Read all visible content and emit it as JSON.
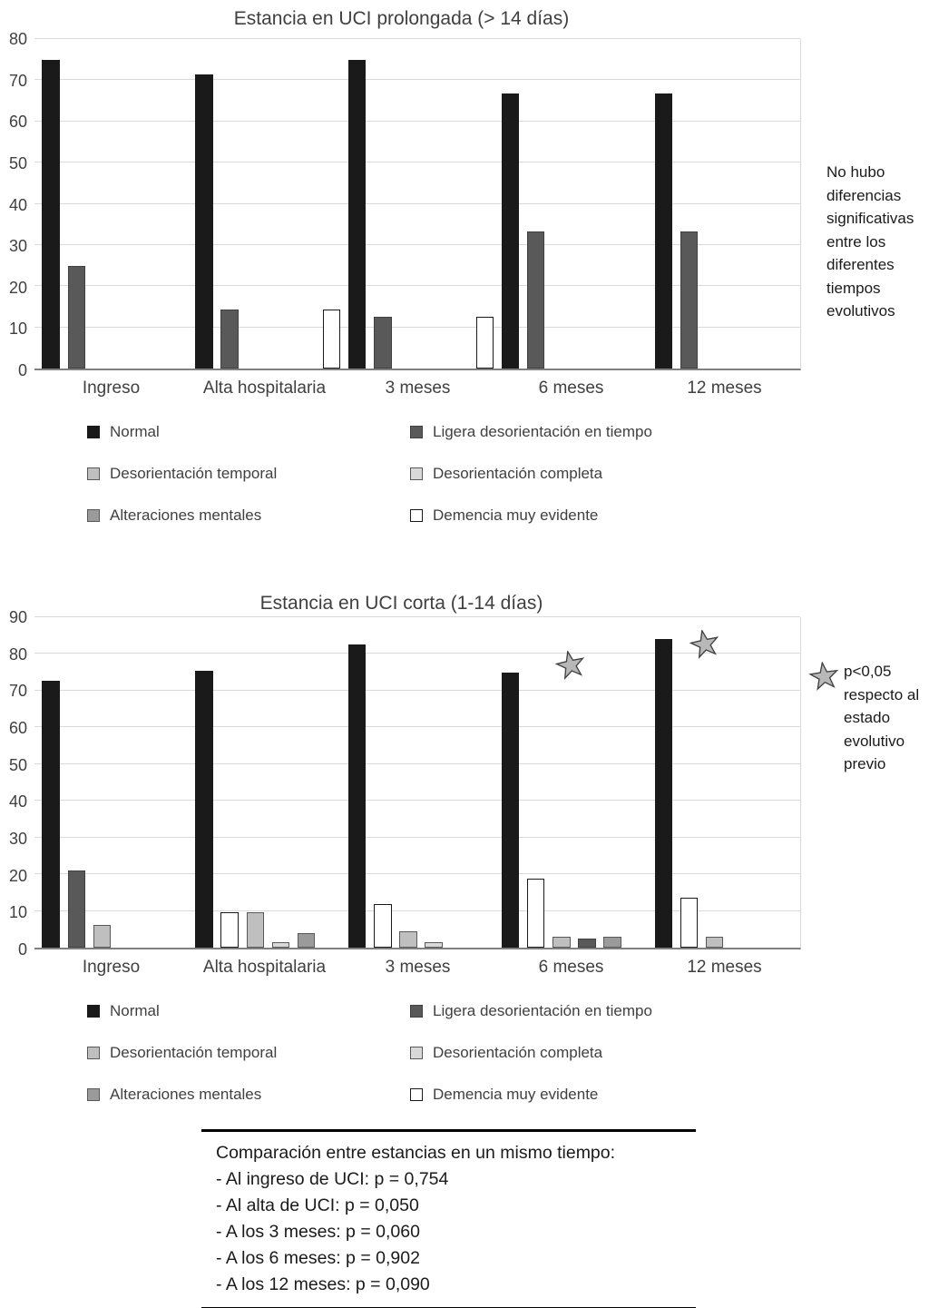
{
  "colors": {
    "normal": {
      "fill": "#1a1a1a",
      "border": "#1a1a1a"
    },
    "ligera": {
      "fill": "#595959",
      "border": "#404040"
    },
    "temporal": {
      "fill": "#bfbfbf",
      "border": "#595959"
    },
    "completa": {
      "fill": "#d9d9d9",
      "border": "#595959"
    },
    "alteraciones": {
      "fill": "#9a9a9a",
      "border": "#595959"
    },
    "demencia": {
      "fill": "#ffffff",
      "border": "#1a1a1a"
    },
    "star": {
      "fill": "#b8b8b8",
      "border": "#404040"
    }
  },
  "legend": {
    "items": [
      {
        "label": "Normal",
        "color": "normal"
      },
      {
        "label": "Ligera desorientación en tiempo",
        "color": "ligera"
      },
      {
        "label": "Desorientación temporal",
        "color": "temporal"
      },
      {
        "label": "Desorientación completa",
        "color": "completa"
      },
      {
        "label": "Alteraciones mentales",
        "color": "alteraciones"
      },
      {
        "label": "Demencia muy evidente",
        "color": "demencia"
      }
    ]
  },
  "chart_data": [
    {
      "type": "bar",
      "title": "Estancia en UCI prolongada (> 14 días)",
      "ylim": [
        0,
        80
      ],
      "ytick_step": 10,
      "grid": true,
      "legend_position": "bottom",
      "annotation": "No hubo diferencias significativas entre los diferentes tiempos evolutivos",
      "categories": [
        {
          "label": "Ingreso",
          "bars": [
            {
              "series": "Normal",
              "color": "normal",
              "value": 75
            },
            {
              "series": "Ligera desorientación en tiempo",
              "color": "ligera",
              "value": 25
            }
          ]
        },
        {
          "label": "Alta hospitalaria",
          "bars": [
            {
              "series": "Normal",
              "color": "normal",
              "value": 71.4
            },
            {
              "series": "Ligera desorientación en tiempo",
              "color": "ligera",
              "value": 14.3
            },
            {
              "series": "Demencia muy evidente",
              "color": "demencia",
              "value": 14.3,
              "slot": 5
            }
          ]
        },
        {
          "label": "3 meses",
          "bars": [
            {
              "series": "Normal",
              "color": "normal",
              "value": 75
            },
            {
              "series": "Ligera desorientación en tiempo",
              "color": "ligera",
              "value": 12.6
            },
            {
              "series": "Demencia muy evidente",
              "color": "demencia",
              "value": 12.6,
              "slot": 5
            }
          ]
        },
        {
          "label": "6 meses",
          "bars": [
            {
              "series": "Normal",
              "color": "normal",
              "value": 66.7
            },
            {
              "series": "Ligera desorientación en tiempo",
              "color": "ligera",
              "value": 33.3
            }
          ]
        },
        {
          "label": "12 meses",
          "bars": [
            {
              "series": "Normal",
              "color": "normal",
              "value": 66.7
            },
            {
              "series": "Ligera desorientación en tiempo",
              "color": "ligera",
              "value": 33.3
            }
          ]
        }
      ],
      "stars": []
    },
    {
      "type": "bar",
      "title": "Estancia en UCI corta (1-14 días)",
      "ylim": [
        0,
        90
      ],
      "ytick_step": 10,
      "grid": true,
      "legend_position": "bottom",
      "annotation": "p<0,05 respecto al estado evolutivo previo",
      "categories": [
        {
          "label": "Ingreso",
          "bars": [
            {
              "series": "Normal",
              "color": "normal",
              "value": 72.7
            },
            {
              "series": "Ligera desorientación en tiempo",
              "color": "ligera",
              "value": 21
            },
            {
              "series": "Desorientación temporal",
              "color": "temporal",
              "value": 6.3
            }
          ]
        },
        {
          "label": "Alta hospitalaria",
          "bars": [
            {
              "series": "Normal",
              "color": "normal",
              "value": 75.5
            },
            {
              "series": "Demencia muy evidente",
              "color": "demencia",
              "value": 9.7
            },
            {
              "series": "Desorientación temporal",
              "color": "temporal",
              "value": 9.7
            },
            {
              "series": "Desorientación completa",
              "color": "completa",
              "value": 1.5
            },
            {
              "series": "Alteraciones mentales",
              "color": "alteraciones",
              "value": 4
            }
          ]
        },
        {
          "label": "3 meses",
          "bars": [
            {
              "series": "Normal",
              "color": "normal",
              "value": 82.5
            },
            {
              "series": "Demencia muy evidente",
              "color": "demencia",
              "value": 11.8
            },
            {
              "series": "Desorientación temporal",
              "color": "temporal",
              "value": 4.5
            },
            {
              "series": "Desorientación completa",
              "color": "completa",
              "value": 1.5
            }
          ]
        },
        {
          "label": "6 meses",
          "bars": [
            {
              "series": "Normal",
              "color": "normal",
              "value": 75
            },
            {
              "series": "Demencia muy evidente",
              "color": "demencia",
              "value": 18.8
            },
            {
              "series": "Desorientación temporal",
              "color": "temporal",
              "value": 2.9
            },
            {
              "series": "Ligera desorientación en tiempo",
              "color": "ligera",
              "value": 2.4
            },
            {
              "series": "Alteraciones mentales",
              "color": "alteraciones",
              "value": 2.9
            }
          ]
        },
        {
          "label": "12 meses",
          "bars": [
            {
              "series": "Normal",
              "color": "normal",
              "value": 84
            },
            {
              "series": "Demencia muy evidente",
              "color": "demencia",
              "value": 13.5
            },
            {
              "series": "Desorientación temporal",
              "color": "temporal",
              "value": 2.9
            }
          ]
        }
      ],
      "stars": [
        {
          "x_pct": 70,
          "y_pct": 14.5
        },
        {
          "x_pct": 87.5,
          "y_pct": 8.2
        }
      ]
    }
  ],
  "comparison": {
    "heading": "Comparación entre estancias en un mismo tiempo:",
    "items": [
      "- Al ingreso de UCI: p = 0,754",
      "- Al alta de UCI: p = 0,050",
      "- A los 3 meses: p = 0,060",
      "- A los 6 meses: p = 0,902",
      "- A los 12 meses: p = 0,090"
    ]
  }
}
